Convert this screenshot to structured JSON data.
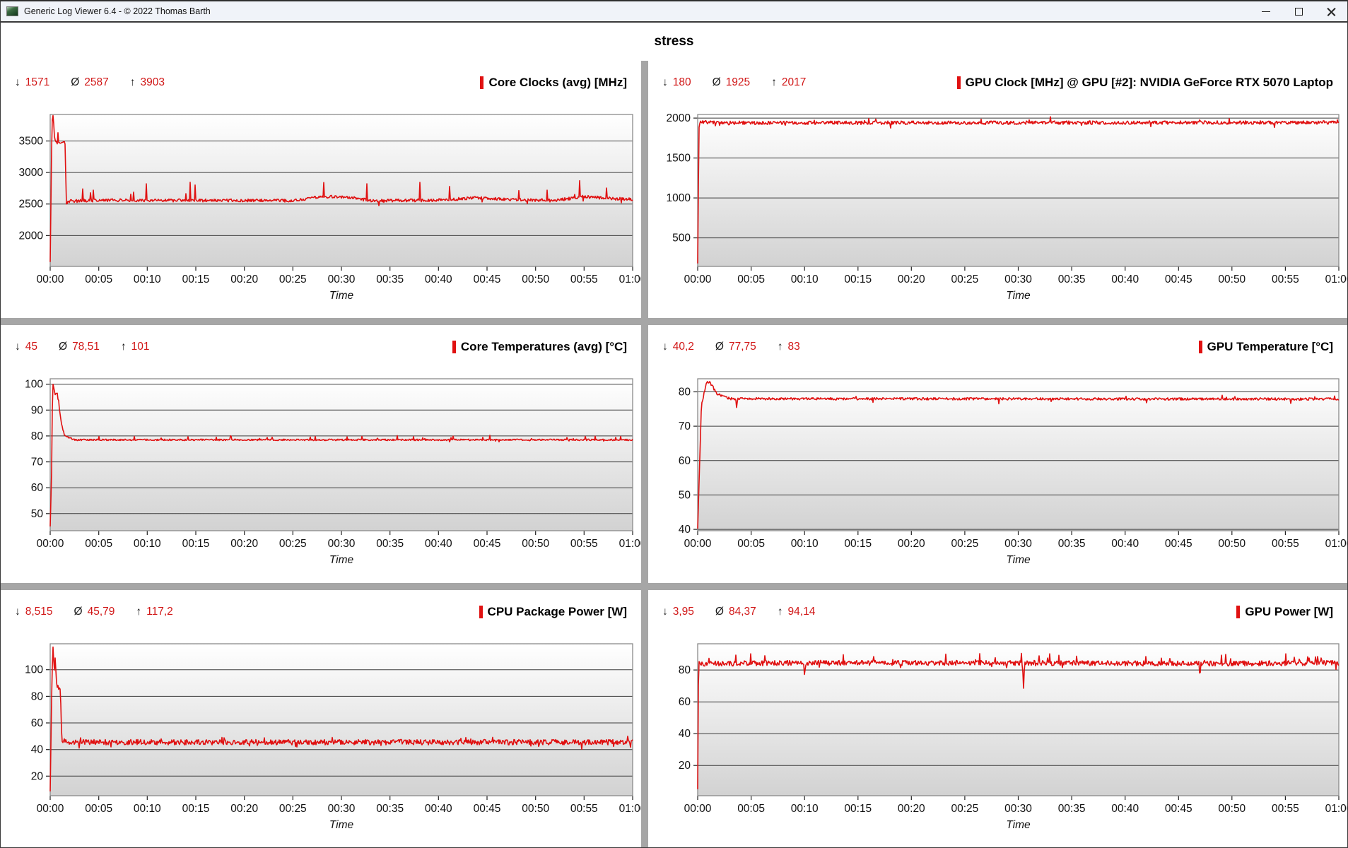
{
  "window": {
    "title": "Generic Log Viewer 6.4 - © 2022 Thomas Barth",
    "icons": {
      "app": "app-logo-icon",
      "minimize": "minimize-icon",
      "maximize": "maximize-icon",
      "close": "close-icon"
    }
  },
  "header": {
    "title": "stress"
  },
  "colors": {
    "accent_red": "#e01111",
    "stat_number_red": "#d11717",
    "grid_line": "#3c3c3c",
    "plot_border": "#8a8a8a",
    "plot_gradient_top": "#ffffff",
    "plot_gradient_bottom": "#d2d2d2",
    "panel_divider": "#a6a6a6",
    "titlebar_bg": "#f0f3f9"
  },
  "stats_symbols": {
    "min": "↓",
    "avg": "Ø",
    "max": "↑"
  },
  "time_axis": {
    "ticks": [
      "00:00",
      "00:05",
      "00:10",
      "00:15",
      "00:20",
      "00:25",
      "00:30",
      "00:35",
      "00:40",
      "00:45",
      "00:50",
      "00:55",
      "01:00"
    ],
    "label": "Time"
  },
  "chart_data": [
    {
      "type": "line",
      "title": "Core Clocks (avg) [MHz]",
      "stats": {
        "min": "1571",
        "avg": "2587",
        "max": "3903"
      },
      "xlabel": "Time",
      "x_range_minutes": [
        0,
        60
      ],
      "yticks": [
        2000,
        2500,
        3000,
        3500
      ],
      "ylim": [
        1511,
        3920
      ],
      "clamp": [
        1571,
        3903
      ],
      "color": "#e01111",
      "seed": 3,
      "noise": 24,
      "profile": [
        [
          0,
          1571
        ],
        [
          0.18,
          3800
        ],
        [
          0.3,
          3903
        ],
        [
          0.45,
          3550
        ],
        [
          0.55,
          3470
        ],
        [
          1.55,
          3470
        ],
        [
          1.65,
          2500
        ],
        [
          2,
          2545
        ],
        [
          5,
          2560
        ],
        [
          25,
          2555
        ],
        [
          28,
          2620
        ],
        [
          31,
          2600
        ],
        [
          33,
          2555
        ],
        [
          40,
          2560
        ],
        [
          44,
          2600
        ],
        [
          47,
          2570
        ],
        [
          52,
          2555
        ],
        [
          55,
          2620
        ],
        [
          58,
          2585
        ],
        [
          60,
          2580
        ]
      ],
      "spike_up": {
        "prob": 0.018,
        "amp": [
          60,
          320
        ]
      },
      "spike_down": {
        "prob": 0.006,
        "amp": [
          30,
          90
        ]
      }
    },
    {
      "type": "line",
      "title": "GPU Clock [MHz] @ GPU [#2]: NVIDIA GeForce RTX 5070 Laptop",
      "stats": {
        "min": "180",
        "avg": "1925",
        "max": "2017"
      },
      "xlabel": "Time",
      "x_range_minutes": [
        0,
        60
      ],
      "yticks": [
        500,
        1000,
        1500,
        2000
      ],
      "ylim": [
        143,
        2045
      ],
      "clamp": [
        180,
        2017
      ],
      "color": "#e01111",
      "seed": 7,
      "noise": 22,
      "profile": [
        [
          0,
          180
        ],
        [
          0.12,
          1880
        ],
        [
          0.25,
          1950
        ],
        [
          3,
          1940
        ],
        [
          60,
          1945
        ]
      ],
      "spike_up": {
        "prob": 0.02,
        "amp": [
          15,
          60
        ]
      },
      "spike_down": {
        "prob": 0.02,
        "amp": [
          15,
          70
        ]
      }
    },
    {
      "type": "line",
      "title": "Core Temperatures (avg) [°C]",
      "stats": {
        "min": "45",
        "avg": "78,51",
        "max": "101"
      },
      "xlabel": "Time",
      "x_range_minutes": [
        0,
        60
      ],
      "yticks": [
        50,
        60,
        70,
        80,
        90,
        100
      ],
      "ylim": [
        43.4,
        102.1
      ],
      "clamp": [
        45,
        101
      ],
      "color": "#e01111",
      "seed": 13,
      "noise": 0.3,
      "profile": [
        [
          0,
          45
        ],
        [
          0.15,
          67
        ],
        [
          0.25,
          101
        ],
        [
          0.5,
          96
        ],
        [
          0.7,
          97
        ],
        [
          1.2,
          84
        ],
        [
          1.5,
          80
        ],
        [
          2.5,
          78.5
        ],
        [
          60,
          78.5
        ]
      ],
      "spike_up": {
        "prob": 0.03,
        "amp": [
          0.5,
          1.6
        ]
      },
      "spike_down": {
        "prob": 0.01,
        "amp": [
          0.3,
          0.8
        ]
      }
    },
    {
      "type": "line",
      "title": "GPU Temperature [°C]",
      "stats": {
        "min": "40,2",
        "avg": "77,75",
        "max": "83"
      },
      "xlabel": "Time",
      "x_range_minutes": [
        0,
        60
      ],
      "yticks": [
        40,
        50,
        60,
        70,
        80
      ],
      "ylim": [
        39.6,
        83.8
      ],
      "clamp": [
        40.2,
        83
      ],
      "color": "#e01111",
      "seed": 21,
      "noise": 0.35,
      "profile": [
        [
          0,
          40.2
        ],
        [
          0.35,
          76
        ],
        [
          0.8,
          82.5
        ],
        [
          1.1,
          83
        ],
        [
          1.8,
          79.5
        ],
        [
          3,
          78
        ],
        [
          3.55,
          78
        ],
        [
          3.65,
          75.2
        ],
        [
          3.75,
          78
        ],
        [
          60,
          77.9
        ]
      ],
      "spike_up": {
        "prob": 0.01,
        "amp": [
          0.3,
          0.8
        ]
      },
      "spike_down": {
        "prob": 0.004,
        "amp": [
          0.8,
          2.2
        ]
      }
    },
    {
      "type": "line",
      "title": "CPU Package Power [W]",
      "stats": {
        "min": "8,515",
        "avg": "45,79",
        "max": "117,2"
      },
      "xlabel": "Time",
      "x_range_minutes": [
        0,
        60
      ],
      "yticks": [
        20,
        40,
        60,
        80,
        100
      ],
      "ylim": [
        5.3,
        119.5
      ],
      "clamp": [
        8.515,
        117.2
      ],
      "color": "#e01111",
      "seed": 29,
      "noise": 2.0,
      "profile": [
        [
          0,
          8.515
        ],
        [
          0.2,
          105
        ],
        [
          0.3,
          117.2
        ],
        [
          0.42,
          96
        ],
        [
          0.52,
          110
        ],
        [
          0.68,
          88
        ],
        [
          1.05,
          84
        ],
        [
          1.2,
          47
        ],
        [
          2,
          45.5
        ],
        [
          60,
          45.5
        ]
      ],
      "spike_up": {
        "prob": 0.02,
        "amp": [
          1.5,
          5
        ]
      },
      "spike_down": {
        "prob": 0.02,
        "amp": [
          1.5,
          4
        ]
      }
    },
    {
      "type": "line",
      "title": "GPU Power [W]",
      "stats": {
        "min": "3,95",
        "avg": "84,37",
        "max": "94,14"
      },
      "xlabel": "Time",
      "x_range_minutes": [
        0,
        60
      ],
      "yticks": [
        20,
        40,
        60,
        80
      ],
      "ylim": [
        1,
        96.5
      ],
      "clamp": [
        3.95,
        94.14
      ],
      "color": "#e01111",
      "seed": 41,
      "noise": 1.6,
      "profile": [
        [
          0,
          3.95
        ],
        [
          0.08,
          84
        ],
        [
          9.9,
          84.5
        ],
        [
          10.0,
          77.5
        ],
        [
          10.1,
          84.5
        ],
        [
          30.4,
          84.5
        ],
        [
          30.5,
          68
        ],
        [
          30.6,
          84.5
        ],
        [
          46.9,
          84
        ],
        [
          47.0,
          75.5
        ],
        [
          47.1,
          84
        ],
        [
          60,
          84.5
        ]
      ],
      "spike_up": {
        "prob": 0.03,
        "amp": [
          2,
          6.5
        ]
      },
      "spike_down": {
        "prob": 0.012,
        "amp": [
          1,
          4
        ]
      }
    }
  ]
}
